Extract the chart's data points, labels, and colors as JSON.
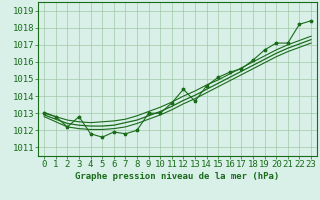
{
  "x": [
    0,
    1,
    2,
    3,
    4,
    5,
    6,
    7,
    8,
    9,
    10,
    11,
    12,
    13,
    14,
    15,
    16,
    17,
    18,
    19,
    20,
    21,
    22,
    23
  ],
  "y_main": [
    1013.0,
    1012.8,
    1012.2,
    1012.8,
    1011.8,
    1011.6,
    1011.9,
    1011.8,
    1012.0,
    1013.0,
    1013.0,
    1013.6,
    1014.4,
    1013.7,
    1014.6,
    1015.1,
    1015.4,
    1015.6,
    1016.1,
    1016.7,
    1017.1,
    1017.1,
    1018.2,
    1018.4
  ],
  "y_smooth_low": [
    1012.8,
    1012.5,
    1012.2,
    1012.1,
    1012.05,
    1012.05,
    1012.1,
    1012.2,
    1012.4,
    1012.65,
    1012.9,
    1013.2,
    1013.55,
    1013.85,
    1014.2,
    1014.55,
    1014.9,
    1015.25,
    1015.6,
    1015.95,
    1016.3,
    1016.6,
    1016.85,
    1017.1
  ],
  "y_smooth_mid": [
    1012.9,
    1012.65,
    1012.4,
    1012.3,
    1012.25,
    1012.25,
    1012.3,
    1012.45,
    1012.6,
    1012.85,
    1013.1,
    1013.4,
    1013.75,
    1014.05,
    1014.4,
    1014.75,
    1015.1,
    1015.45,
    1015.8,
    1016.15,
    1016.5,
    1016.8,
    1017.05,
    1017.3
  ],
  "y_smooth_high": [
    1013.05,
    1012.8,
    1012.6,
    1012.5,
    1012.45,
    1012.5,
    1012.55,
    1012.65,
    1012.85,
    1013.1,
    1013.35,
    1013.65,
    1014.0,
    1014.3,
    1014.65,
    1014.95,
    1015.3,
    1015.65,
    1016.0,
    1016.35,
    1016.7,
    1017.0,
    1017.25,
    1017.5
  ],
  "line_color": "#1a6b1a",
  "bg_color": "#d8f0e8",
  "grid_color": "#a0c8a8",
  "xlabel": "Graphe pression niveau de la mer (hPa)",
  "ylim": [
    1010.5,
    1019.5
  ],
  "yticks": [
    1011,
    1012,
    1013,
    1014,
    1015,
    1016,
    1017,
    1018,
    1019
  ],
  "xticks": [
    0,
    1,
    2,
    3,
    4,
    5,
    6,
    7,
    8,
    9,
    10,
    11,
    12,
    13,
    14,
    15,
    16,
    17,
    18,
    19,
    20,
    21,
    22,
    23
  ],
  "marker_size": 2.5,
  "font_size": 6.5
}
